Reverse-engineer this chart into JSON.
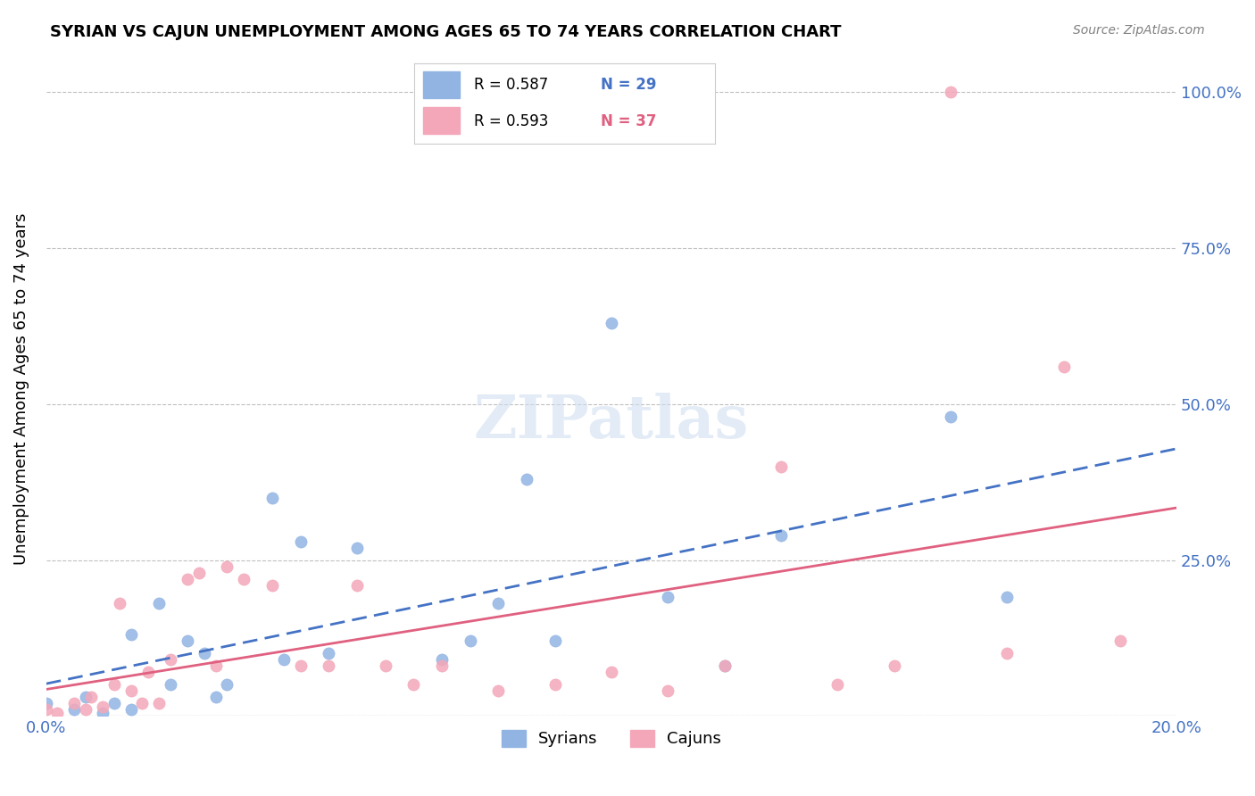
{
  "title": "SYRIAN VS CAJUN UNEMPLOYMENT AMONG AGES 65 TO 74 YEARS CORRELATION CHART",
  "source": "Source: ZipAtlas.com",
  "xlabel_bottom": "",
  "ylabel": "Unemployment Among Ages 65 to 74 years",
  "x_min": 0.0,
  "x_max": 0.2,
  "y_min": 0.0,
  "y_max": 1.05,
  "x_ticks": [
    0.0,
    0.05,
    0.1,
    0.15,
    0.2
  ],
  "x_tick_labels": [
    "0.0%",
    "",
    "",
    "",
    "20.0%"
  ],
  "y_ticks": [
    0.0,
    0.25,
    0.5,
    0.75,
    1.0
  ],
  "y_tick_labels_right": [
    "",
    "25.0%",
    "50.0%",
    "75.0%",
    "100.0%"
  ],
  "syrian_color": "#92b4e3",
  "cajun_color": "#f4a7b9",
  "syrian_line_color": "#4472c4",
  "cajun_line_color": "#e06080",
  "R_syrian": 0.587,
  "N_syrian": 29,
  "R_cajun": 0.593,
  "N_cajun": 37,
  "watermark": "ZIPatlas",
  "syrian_points_x": [
    0.0,
    0.005,
    0.007,
    0.01,
    0.012,
    0.015,
    0.015,
    0.02,
    0.022,
    0.025,
    0.028,
    0.03,
    0.032,
    0.04,
    0.042,
    0.045,
    0.05,
    0.055,
    0.07,
    0.075,
    0.08,
    0.085,
    0.09,
    0.1,
    0.11,
    0.12,
    0.13,
    0.16,
    0.17
  ],
  "syrian_points_y": [
    0.02,
    0.01,
    0.03,
    0.005,
    0.02,
    0.01,
    0.13,
    0.18,
    0.05,
    0.12,
    0.1,
    0.03,
    0.05,
    0.35,
    0.09,
    0.28,
    0.1,
    0.27,
    0.09,
    0.12,
    0.18,
    0.38,
    0.12,
    0.63,
    0.19,
    0.08,
    0.29,
    0.48,
    0.19
  ],
  "cajun_points_x": [
    0.0,
    0.002,
    0.005,
    0.007,
    0.008,
    0.01,
    0.012,
    0.013,
    0.015,
    0.017,
    0.018,
    0.02,
    0.022,
    0.025,
    0.027,
    0.03,
    0.032,
    0.035,
    0.04,
    0.045,
    0.05,
    0.055,
    0.06,
    0.065,
    0.07,
    0.08,
    0.09,
    0.1,
    0.11,
    0.12,
    0.13,
    0.14,
    0.15,
    0.16,
    0.17,
    0.18,
    0.19
  ],
  "cajun_points_y": [
    0.01,
    0.005,
    0.02,
    0.01,
    0.03,
    0.015,
    0.05,
    0.18,
    0.04,
    0.02,
    0.07,
    0.02,
    0.09,
    0.22,
    0.23,
    0.08,
    0.24,
    0.22,
    0.21,
    0.08,
    0.08,
    0.21,
    0.08,
    0.05,
    0.08,
    0.04,
    0.05,
    0.07,
    0.04,
    0.08,
    0.4,
    0.05,
    0.08,
    1.0,
    0.1,
    0.56,
    0.12
  ],
  "background_color": "#ffffff",
  "grid_color": "#c0c0c0"
}
